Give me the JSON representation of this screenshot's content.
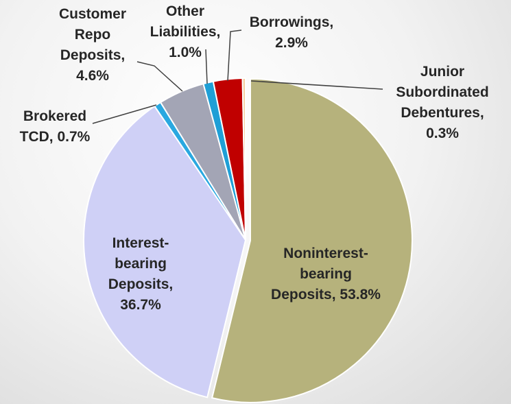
{
  "chart_data": {
    "type": "pie",
    "categories": [
      "Noninterest-bearing Deposits,",
      "Interest-bearing Deposits,",
      "Brokered TCD,",
      "Customer Repo Deposits,",
      "Other Liabilities,",
      "Borrowings,",
      "Junior Subordinated Debentures,"
    ],
    "values": [
      53.8,
      36.7,
      0.7,
      4.6,
      1.0,
      2.9,
      0.3
    ],
    "value_labels": [
      "53.8%",
      "36.7%",
      "0.7%",
      "4.6%",
      "1.0%",
      "2.9%",
      "0.3%"
    ],
    "colors": [
      "#b6b27c",
      "#cfd0f6",
      "#2aa8e0",
      "#a3a5b5",
      "#1f9fd6",
      "#c00000",
      "#f3cfa0"
    ]
  }
}
